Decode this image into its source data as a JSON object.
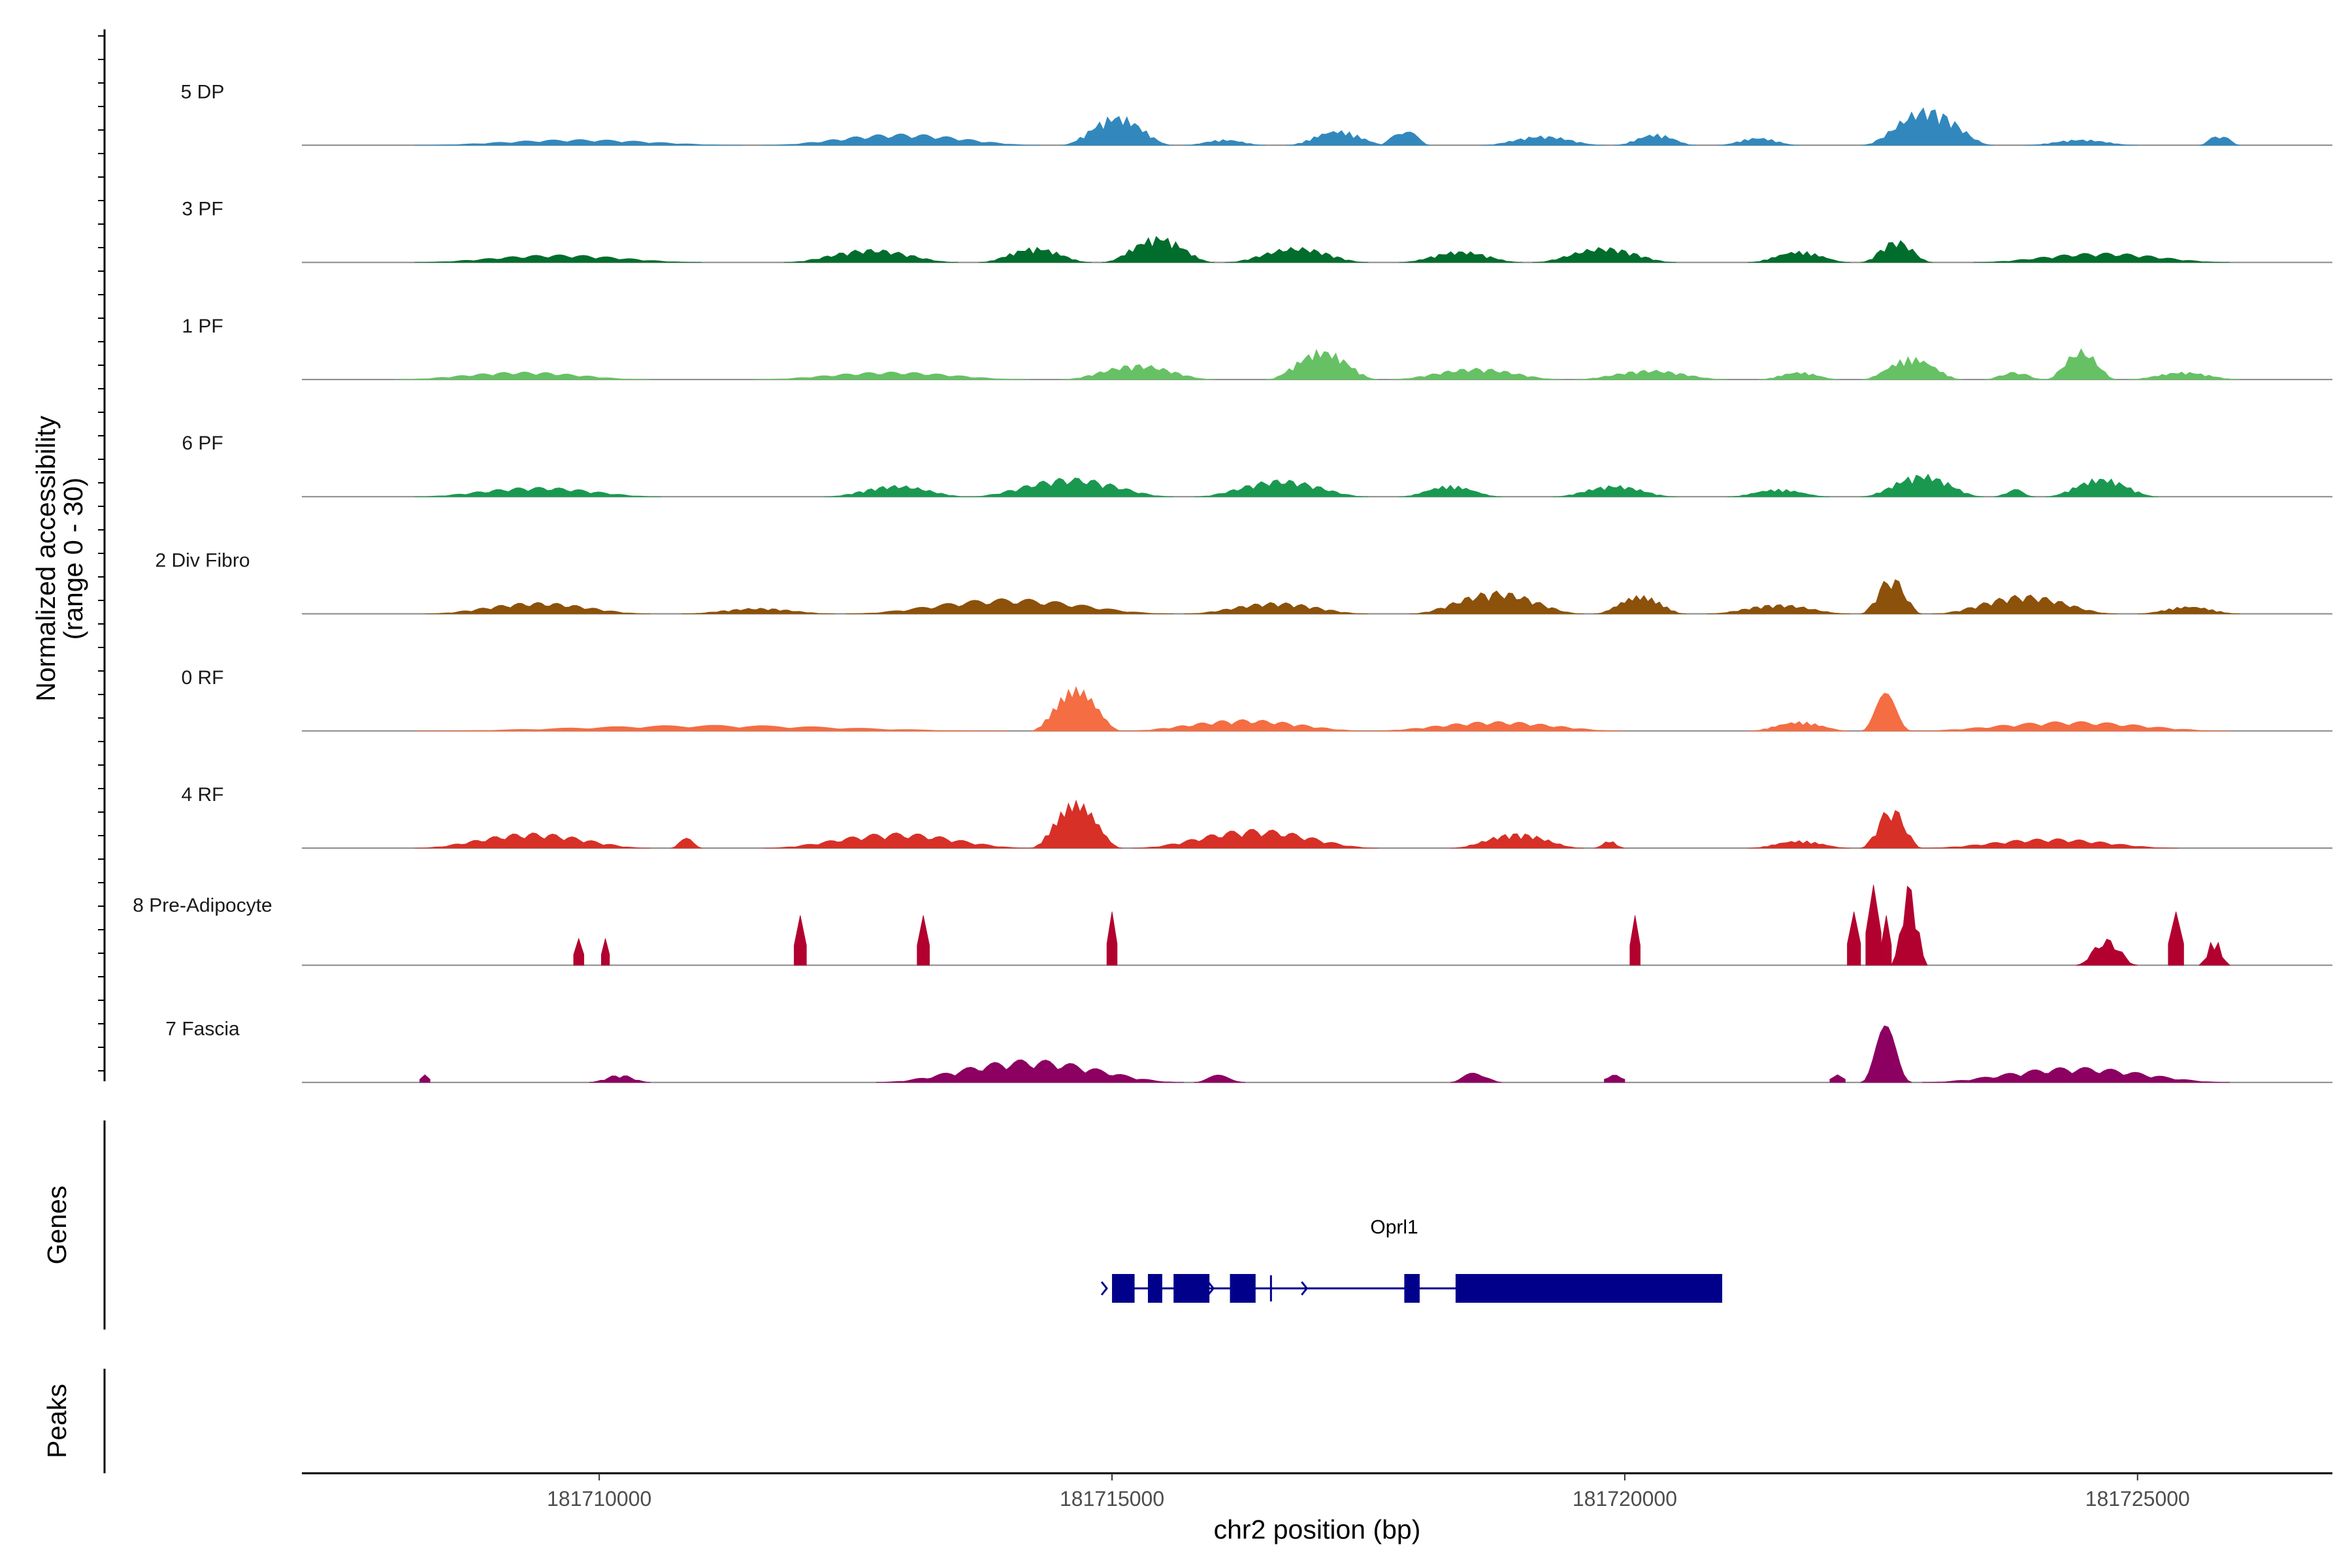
{
  "chart_data": {
    "type": "area",
    "title": "",
    "xlabel": "chr2 position (bp)",
    "ylabel_line1": "Normalized accessibility",
    "ylabel_line2": "(range 0 - 30)",
    "ylim": [
      0,
      30
    ],
    "xlim": [
      181707100,
      181726900
    ],
    "x_ticks": [
      181710000,
      181715000,
      181720000,
      181725000
    ],
    "x_tick_labels": [
      "181710000",
      "181715000",
      "181720000",
      "181725000"
    ],
    "tracks": [
      {
        "name": "5 DP",
        "color": "#3288bd",
        "peaks": [
          [
            181708200,
            181711400,
            1.5
          ],
          [
            181711600,
            181714300,
            3
          ],
          [
            181714500,
            181715600,
            8
          ],
          [
            181715700,
            181716500,
            1.5
          ],
          [
            181716700,
            181717700,
            4
          ],
          [
            181717600,
            181718100,
            5
          ],
          [
            181718600,
            181719800,
            2.5
          ],
          [
            181719900,
            181720700,
            3
          ],
          [
            181720900,
            181721700,
            2
          ],
          [
            181722300,
            181723600,
            10
          ],
          [
            181723900,
            181725000,
            1.5
          ],
          [
            181725600,
            181726000,
            3
          ]
        ]
      },
      {
        "name": "3 PF",
        "color": "#006d2c",
        "peaks": [
          [
            181708200,
            181711000,
            2
          ],
          [
            181711800,
            181713500,
            3.5
          ],
          [
            181713700,
            181714800,
            4
          ],
          [
            181714900,
            181716000,
            7
          ],
          [
            181716100,
            181717500,
            4
          ],
          [
            181717800,
            181719000,
            3
          ],
          [
            181719100,
            181720500,
            4
          ],
          [
            181721200,
            181722200,
            3
          ],
          [
            181722300,
            181723000,
            6
          ],
          [
            181723400,
            181725900,
            2.5
          ]
        ]
      },
      {
        "name": "1 PF",
        "color": "#66c164",
        "peaks": [
          [
            181708000,
            181710500,
            2
          ],
          [
            181711500,
            181714200,
            2
          ],
          [
            181714500,
            181716000,
            4
          ],
          [
            181716500,
            181717600,
            8
          ],
          [
            181717700,
            181719400,
            3
          ],
          [
            181719500,
            181721000,
            2.5
          ],
          [
            181721300,
            181722100,
            2
          ],
          [
            181722300,
            181723300,
            6
          ],
          [
            181723500,
            181724100,
            2
          ],
          [
            181724100,
            181724800,
            8
          ],
          [
            181724900,
            181726000,
            2
          ]
        ]
      },
      {
        "name": "6 PF",
        "color": "#1a9850",
        "peaks": [
          [
            181708200,
            181710600,
            2.5
          ],
          [
            181712200,
            181713600,
            3
          ],
          [
            181713600,
            181715600,
            5
          ],
          [
            181715800,
            181717500,
            4.5
          ],
          [
            181717800,
            181718800,
            3
          ],
          [
            181719300,
            181720500,
            3
          ],
          [
            181721000,
            181722000,
            2
          ],
          [
            181722300,
            181723500,
            6
          ],
          [
            181723600,
            181724000,
            2
          ],
          [
            181724100,
            181725200,
            5
          ]
        ]
      },
      {
        "name": "2 Div Fibro",
        "color": "#8c510a",
        "peaks": [
          [
            181708300,
            181710500,
            3
          ],
          [
            181710800,
            181712300,
            1.5
          ],
          [
            181712400,
            181715600,
            4
          ],
          [
            181715700,
            181717500,
            3
          ],
          [
            181717900,
            181719600,
            6
          ],
          [
            181719700,
            181720600,
            5
          ],
          [
            181720800,
            181722200,
            2.5
          ],
          [
            181722300,
            181722900,
            10
          ],
          [
            181723000,
            181724800,
            5
          ],
          [
            181725000,
            181726000,
            2
          ]
        ]
      },
      {
        "name": "0 RF",
        "color": "#f46d43",
        "peaks": [
          [
            181708200,
            181714000,
            1.5
          ],
          [
            181714200,
            181715100,
            12
          ],
          [
            181715100,
            181717500,
            3
          ],
          [
            181717500,
            181720000,
            2.5
          ],
          [
            181721200,
            181722200,
            2.5
          ],
          [
            181722300,
            181722800,
            10
          ],
          [
            181722800,
            181725900,
            2.5
          ]
        ]
      },
      {
        "name": "4 RF",
        "color": "#d73027",
        "peaks": [
          [
            181708200,
            181710500,
            4
          ],
          [
            181710700,
            181711000,
            3
          ],
          [
            181711600,
            181714200,
            4
          ],
          [
            181714200,
            181715100,
            13
          ],
          [
            181715200,
            181717600,
            5
          ],
          [
            181718300,
            181719600,
            4
          ],
          [
            181719700,
            181720000,
            2
          ],
          [
            181721200,
            181722200,
            2
          ],
          [
            181722300,
            181722900,
            11
          ],
          [
            181722900,
            181725400,
            2.5
          ]
        ]
      },
      {
        "name": "8 Pre-Adipocyte",
        "color": "#b2002f",
        "peaks": [
          [
            181709750,
            181709850,
            7
          ],
          [
            181710020,
            181710100,
            7
          ],
          [
            181711900,
            181712020,
            13
          ],
          [
            181713100,
            181713220,
            13
          ],
          [
            181714950,
            181715050,
            14
          ],
          [
            181720050,
            181720150,
            13
          ],
          [
            181722170,
            181722300,
            14
          ],
          [
            181722350,
            181722500,
            21
          ],
          [
            181722500,
            181722600,
            13
          ],
          [
            181722600,
            181722950,
            22
          ],
          [
            181724400,
            181725000,
            7
          ],
          [
            181725300,
            181725450,
            14
          ],
          [
            181725600,
            181725900,
            7
          ]
        ]
      },
      {
        "name": "7 Fascia",
        "color": "#8c0061",
        "peaks": [
          [
            181708250,
            181708350,
            2
          ],
          [
            181709900,
            181710500,
            2
          ],
          [
            181712700,
            181715700,
            6
          ],
          [
            181715800,
            181716300,
            2
          ],
          [
            181718300,
            181718800,
            3
          ],
          [
            181719800,
            181720000,
            2
          ],
          [
            181722000,
            181722150,
            2
          ],
          [
            181722300,
            181722800,
            15
          ],
          [
            181722900,
            181725900,
            4
          ]
        ]
      }
    ],
    "genes": [
      {
        "name": "Oprl1",
        "start": 181715000,
        "end": 181720950,
        "strand": "+",
        "color": "#00008b",
        "exons": [
          [
            181715000,
            181715220
          ],
          [
            181715350,
            181715490
          ],
          [
            181715600,
            181715950
          ],
          [
            181716150,
            181716400
          ],
          [
            181717850,
            181718000
          ],
          [
            181718350,
            181720950
          ]
        ]
      }
    ],
    "panel_labels": [
      "Genes",
      "Peaks"
    ]
  }
}
